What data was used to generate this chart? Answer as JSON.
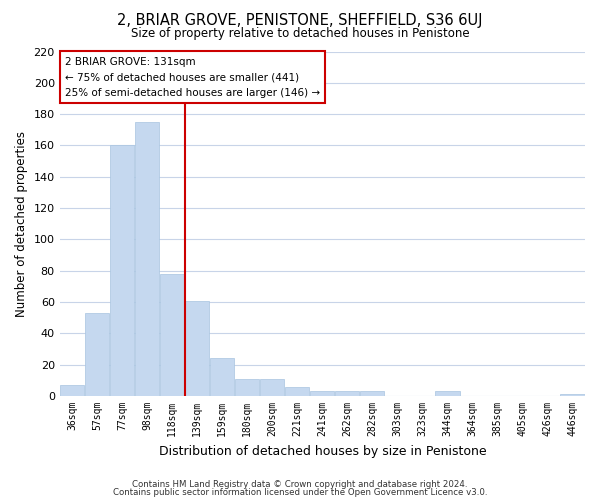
{
  "title": "2, BRIAR GROVE, PENISTONE, SHEFFIELD, S36 6UJ",
  "subtitle": "Size of property relative to detached houses in Penistone",
  "xlabel": "Distribution of detached houses by size in Penistone",
  "ylabel": "Number of detached properties",
  "bin_labels": [
    "36sqm",
    "57sqm",
    "77sqm",
    "98sqm",
    "118sqm",
    "139sqm",
    "159sqm",
    "180sqm",
    "200sqm",
    "221sqm",
    "241sqm",
    "262sqm",
    "282sqm",
    "303sqm",
    "323sqm",
    "344sqm",
    "364sqm",
    "385sqm",
    "405sqm",
    "426sqm",
    "446sqm"
  ],
  "bar_heights": [
    7,
    53,
    160,
    175,
    78,
    61,
    24,
    11,
    11,
    6,
    3,
    3,
    3,
    0,
    0,
    3,
    0,
    0,
    0,
    0,
    1
  ],
  "bar_color": "#c5d8ef",
  "bar_edge_color": "#a8c4e0",
  "grid_color": "#c8d4e8",
  "vline_color": "#cc0000",
  "vline_x_index": 4.5,
  "annotation_title": "2 BRIAR GROVE: 131sqm",
  "annotation_line1": "← 75% of detached houses are smaller (441)",
  "annotation_line2": "25% of semi-detached houses are larger (146) →",
  "annotation_box_color": "#ffffff",
  "annotation_box_edge": "#cc0000",
  "ylim": [
    0,
    220
  ],
  "yticks": [
    0,
    20,
    40,
    60,
    80,
    100,
    120,
    140,
    160,
    180,
    200,
    220
  ],
  "footer1": "Contains HM Land Registry data © Crown copyright and database right 2024.",
  "footer2": "Contains public sector information licensed under the Open Government Licence v3.0.",
  "bg_color": "#ffffff",
  "plot_bg_color": "#ffffff"
}
